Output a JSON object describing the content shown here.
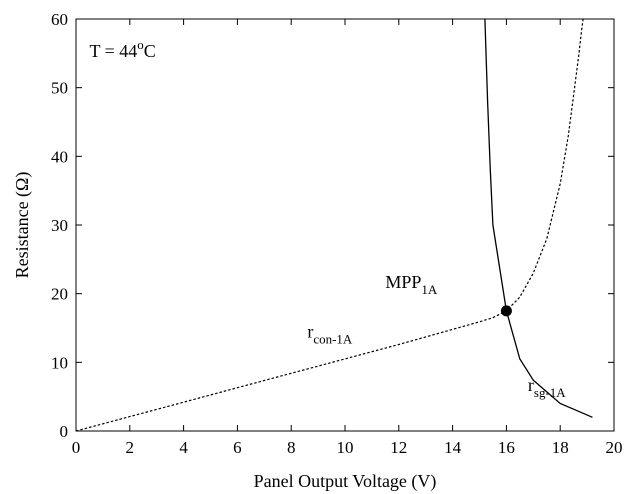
{
  "chart_data": {
    "type": "line",
    "xlabel": "Panel Output Voltage (V)",
    "ylabel": "Resistance (Ω)",
    "xlim": [
      0,
      20
    ],
    "ylim": [
      0,
      60
    ],
    "x_ticks": [
      "0",
      "2",
      "4",
      "6",
      "8",
      "10",
      "12",
      "14",
      "16",
      "18",
      "20"
    ],
    "y_ticks": [
      "0",
      "10",
      "20",
      "30",
      "40",
      "50",
      "60"
    ],
    "grid": false,
    "legend": "none",
    "annotations": {
      "temperature": {
        "prefix": "T = 44",
        "sup": "o",
        "suffix": "C"
      },
      "mpp": {
        "main": "MPP",
        "sub": "1A"
      },
      "rcon": {
        "main": "r",
        "sub": "con-1A"
      },
      "rsg": {
        "main": "r",
        "sub": "sg-1A"
      }
    },
    "series": [
      {
        "style": "dashed",
        "x": [
          0,
          2,
          4,
          6,
          8,
          10,
          12,
          14,
          15,
          15.5,
          16,
          16.5,
          17,
          17.5,
          18,
          18.3,
          18.5,
          18.7,
          18.8,
          18.85
        ],
        "y": [
          0,
          2.1,
          4.2,
          6.3,
          8.4,
          10.5,
          12.6,
          14.8,
          15.9,
          16.5,
          17.5,
          19.5,
          23,
          28,
          36,
          43,
          49,
          55,
          58.5,
          60
        ]
      },
      {
        "style": "solid",
        "x": [
          15.2,
          15.3,
          15.4,
          15.5,
          16,
          16.5,
          17,
          18,
          19.2
        ],
        "y": [
          60,
          48,
          38,
          30,
          17.5,
          10.5,
          7.4,
          4,
          2
        ]
      }
    ],
    "mpp_point": {
      "x": 16,
      "y": 17.5
    }
  }
}
